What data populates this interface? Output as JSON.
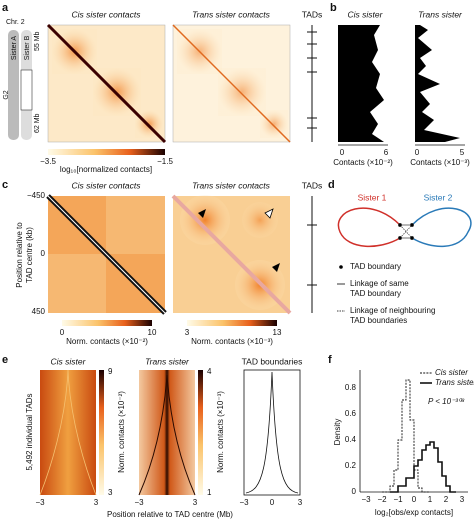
{
  "panel_a": {
    "label": "a",
    "chromosome": "Chr. 2",
    "sister_a": "Sister A",
    "sister_b": "Sister B",
    "phase": "G2",
    "start": "55 Mb",
    "end": "62 Mb",
    "cis_title": "Cis sister contacts",
    "trans_title": "Trans sister contacts",
    "tads": "TADs",
    "colorbar_min": "−3.5",
    "colorbar_max": "−1.5",
    "colorbar_label": "log₁₀[normalized contacts]"
  },
  "panel_b": {
    "label": "b",
    "cis_title": "Cis sister",
    "trans_title": "Trans sister",
    "cis_ticks": [
      "0",
      "6"
    ],
    "trans_ticks": [
      "0",
      "5"
    ],
    "cis_axis": "Contacts (×10⁻²)",
    "trans_axis": "Contacts (×10⁻³)"
  },
  "panel_c": {
    "label": "c",
    "cis_title": "Cis sister contacts",
    "trans_title": "Trans sister contacts",
    "tads": "TADs",
    "y_ticks": [
      "−450",
      "0",
      "450"
    ],
    "y_label": [
      "Position relative to",
      "TAD centre (kb)"
    ],
    "cis_colorbar": [
      "0",
      "10"
    ],
    "cis_colorbar_label": "Norm. contacts (×10⁻²)",
    "trans_colorbar": [
      "3",
      "13"
    ],
    "trans_colorbar_label": "Norm. contacts (×10⁻³)"
  },
  "panel_d": {
    "label": "d",
    "sister_1": "Sister 1",
    "sister_2": "Sister 2",
    "legend": [
      "TAD boundary",
      "Linkage of same",
      "TAD boundary",
      "Linkage of neighbouring",
      "TAD boundaries"
    ]
  },
  "panel_e": {
    "label": "e",
    "cis_title": "Cis sister",
    "trans_title": "Trans sister",
    "tad_title": "TAD boundaries",
    "y_label": "5,492 individual TADs",
    "cis_colorbar": [
      "9",
      "3"
    ],
    "cis_colorbar_label": "Norm. contacts (×10⁻²)",
    "trans_colorbar": [
      "4",
      "1"
    ],
    "trans_colorbar_label": "Norm. contacts (×10⁻³)",
    "x_ticks": [
      "−3",
      "3",
      "−3",
      "3",
      "−3",
      "0",
      "3"
    ],
    "x_label": "Position relative to TAD centre (Mb)"
  },
  "panel_f": {
    "label": "f",
    "legend": [
      "Cis sister",
      "Trans sister"
    ],
    "p_value": "P < 10⁻³⁰⁸",
    "y_label": "Density",
    "y_ticks": [
      "0",
      "0.2",
      "0.4",
      "0.6",
      "0.8"
    ],
    "x_ticks": [
      "−3",
      "−2",
      "−1",
      "0",
      "1",
      "2",
      "3"
    ],
    "x_label": "log₂[obs/exp contacts]"
  }
}
